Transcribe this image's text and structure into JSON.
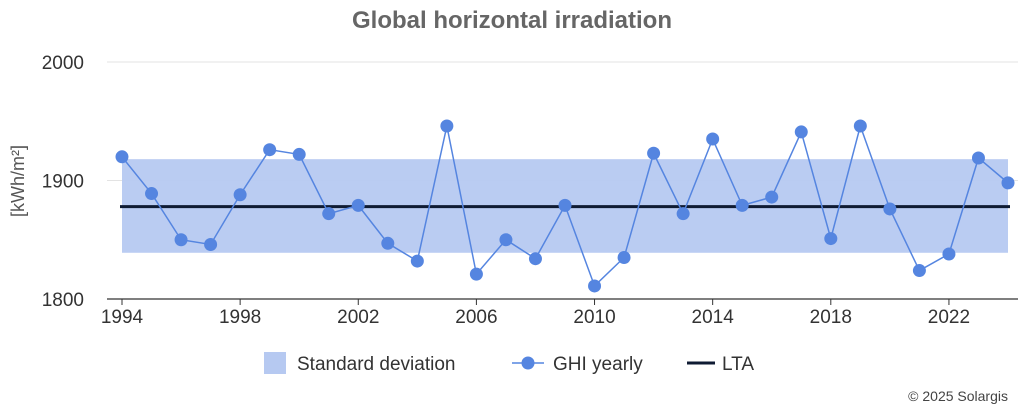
{
  "chart_data": {
    "type": "line",
    "title": "Global horizontal irradiation",
    "ylabel": "[kWh/m²]",
    "xlabel": "",
    "ylim": [
      1800,
      2000
    ],
    "yticks": [
      1800,
      1900,
      2000
    ],
    "xlim": [
      1994,
      2024
    ],
    "xticks": [
      1994,
      1998,
      2002,
      2006,
      2010,
      2014,
      2018,
      2022
    ],
    "grid": true,
    "legend_position": "bottom",
    "series": [
      {
        "name": "GHI yearly",
        "type": "line-markers",
        "color": "#5585e0",
        "x": [
          1994,
          1995,
          1996,
          1997,
          1998,
          1999,
          2000,
          2001,
          2002,
          2003,
          2004,
          2005,
          2006,
          2007,
          2008,
          2009,
          2010,
          2011,
          2012,
          2013,
          2014,
          2015,
          2016,
          2017,
          2018,
          2019,
          2020,
          2021,
          2022,
          2023,
          2024
        ],
        "values": [
          1920,
          1889,
          1850,
          1846,
          1888,
          1926,
          1922,
          1872,
          1879,
          1847,
          1832,
          1946,
          1821,
          1850,
          1834,
          1879,
          1811,
          1835,
          1923,
          1872,
          1935,
          1879,
          1886,
          1941,
          1851,
          1946,
          1876,
          1824,
          1838,
          1919,
          1898
        ]
      },
      {
        "name": "LTA",
        "type": "hline",
        "color": "#0f1b33",
        "value": 1878
      },
      {
        "name": "Standard deviation",
        "type": "band",
        "color": "#b6c9f1",
        "low": 1839,
        "high": 1918
      }
    ],
    "legend": [
      "Standard deviation",
      "GHI yearly",
      "LTA"
    ]
  },
  "credit": "© 2025 Solargis"
}
